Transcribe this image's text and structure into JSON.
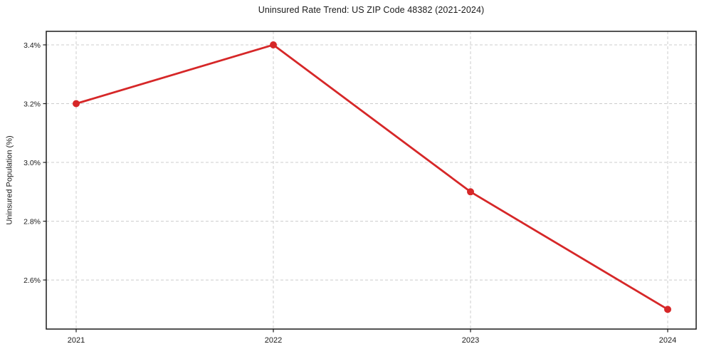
{
  "chart_data": {
    "type": "line",
    "title": "Uninsured Rate Trend: US ZIP Code 48382 (2021-2024)",
    "xlabel": "",
    "ylabel": "Uninsured Population (%)",
    "categories": [
      "2021",
      "2022",
      "2023",
      "2024"
    ],
    "values": [
      3.2,
      3.4,
      2.9,
      2.5
    ],
    "yticks": {
      "values": [
        2.6,
        2.8,
        3.0,
        3.2,
        3.4
      ],
      "labels": [
        "2.6%",
        "2.8%",
        "3.0%",
        "3.2%",
        "3.4%"
      ]
    },
    "ylim": [
      2.433,
      3.446
    ],
    "grid": {
      "visible": true,
      "style": "dashed",
      "color": "#cccccc"
    },
    "legend": {
      "visible": false
    },
    "marker": "circle",
    "colors": {
      "line": "#d62728",
      "marker": "#d62728",
      "spine": "#1a1a1a",
      "text": "#1a1a1a",
      "grid": "#cccccc",
      "background": "#ffffff"
    }
  }
}
